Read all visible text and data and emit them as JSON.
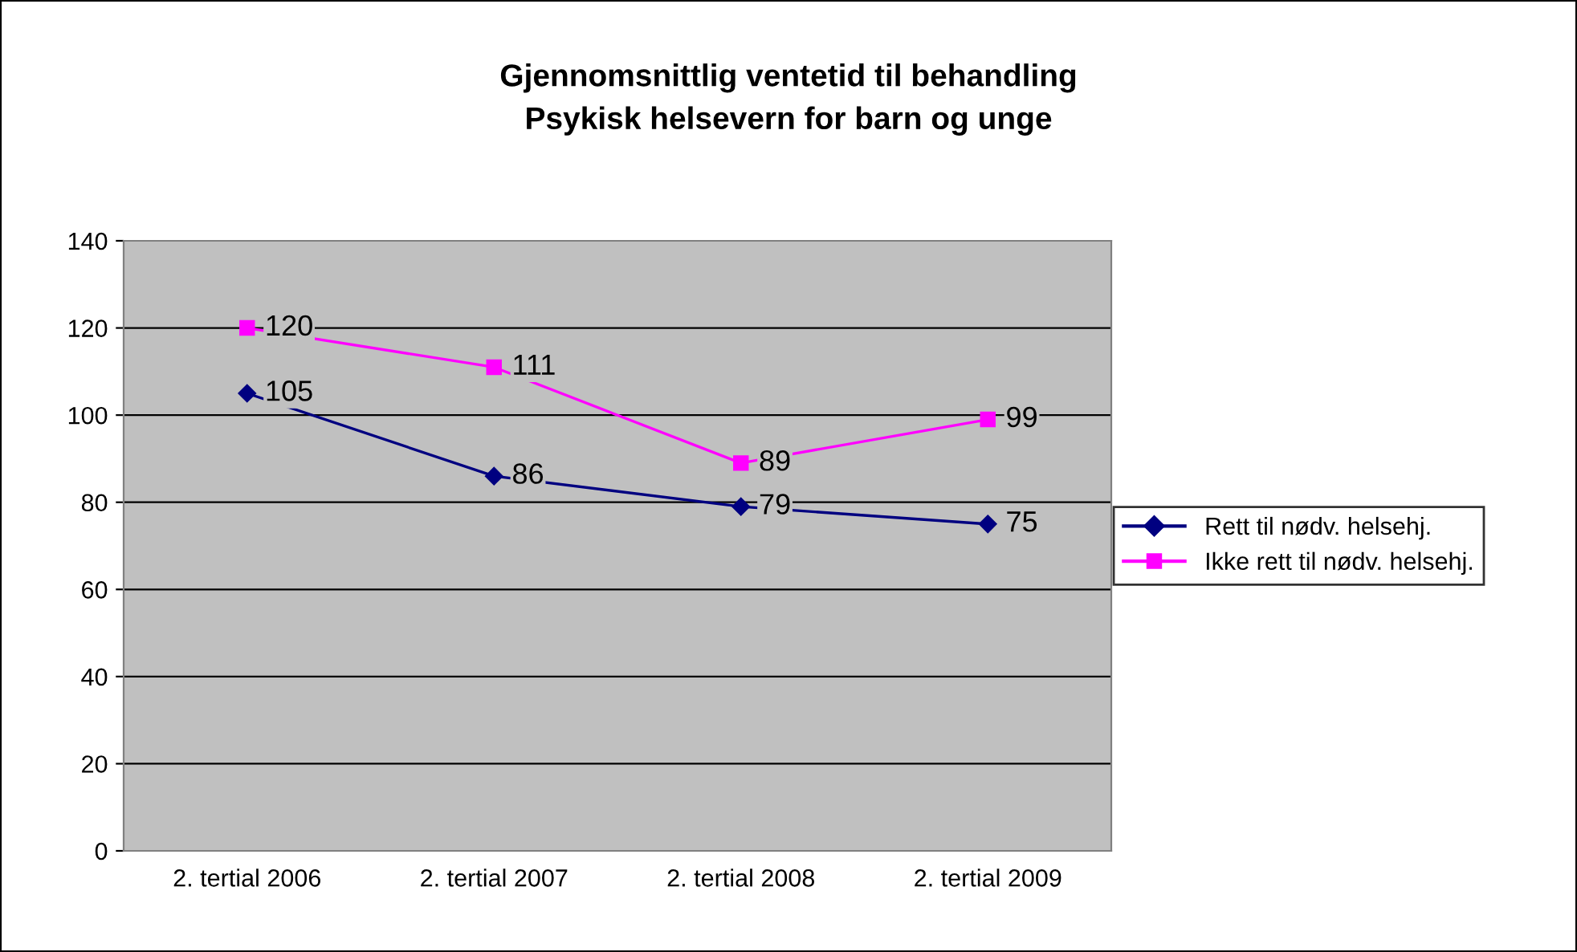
{
  "chart_data": {
    "type": "line",
    "title": "Gjennomsnittlig ventetid til behandling\nPsykisk helsevern for barn og unge",
    "categories": [
      "2. tertial 2006",
      "2. tertial 2007",
      "2. tertial 2008",
      "2. tertial 2009"
    ],
    "series": [
      {
        "name": "Rett til nødv. helsehj.",
        "color": "#000080",
        "marker": "diamond",
        "values": [
          105,
          86,
          79,
          75
        ]
      },
      {
        "name": "Ikke rett til nødv. helsehj.",
        "color": "#ff00ff",
        "marker": "square",
        "values": [
          120,
          111,
          89,
          99
        ]
      }
    ],
    "ylim": [
      0,
      140
    ],
    "yticks": [
      0,
      20,
      40,
      60,
      80,
      100,
      120,
      140
    ],
    "grid": "y",
    "legend": "right",
    "data_labels": true
  }
}
